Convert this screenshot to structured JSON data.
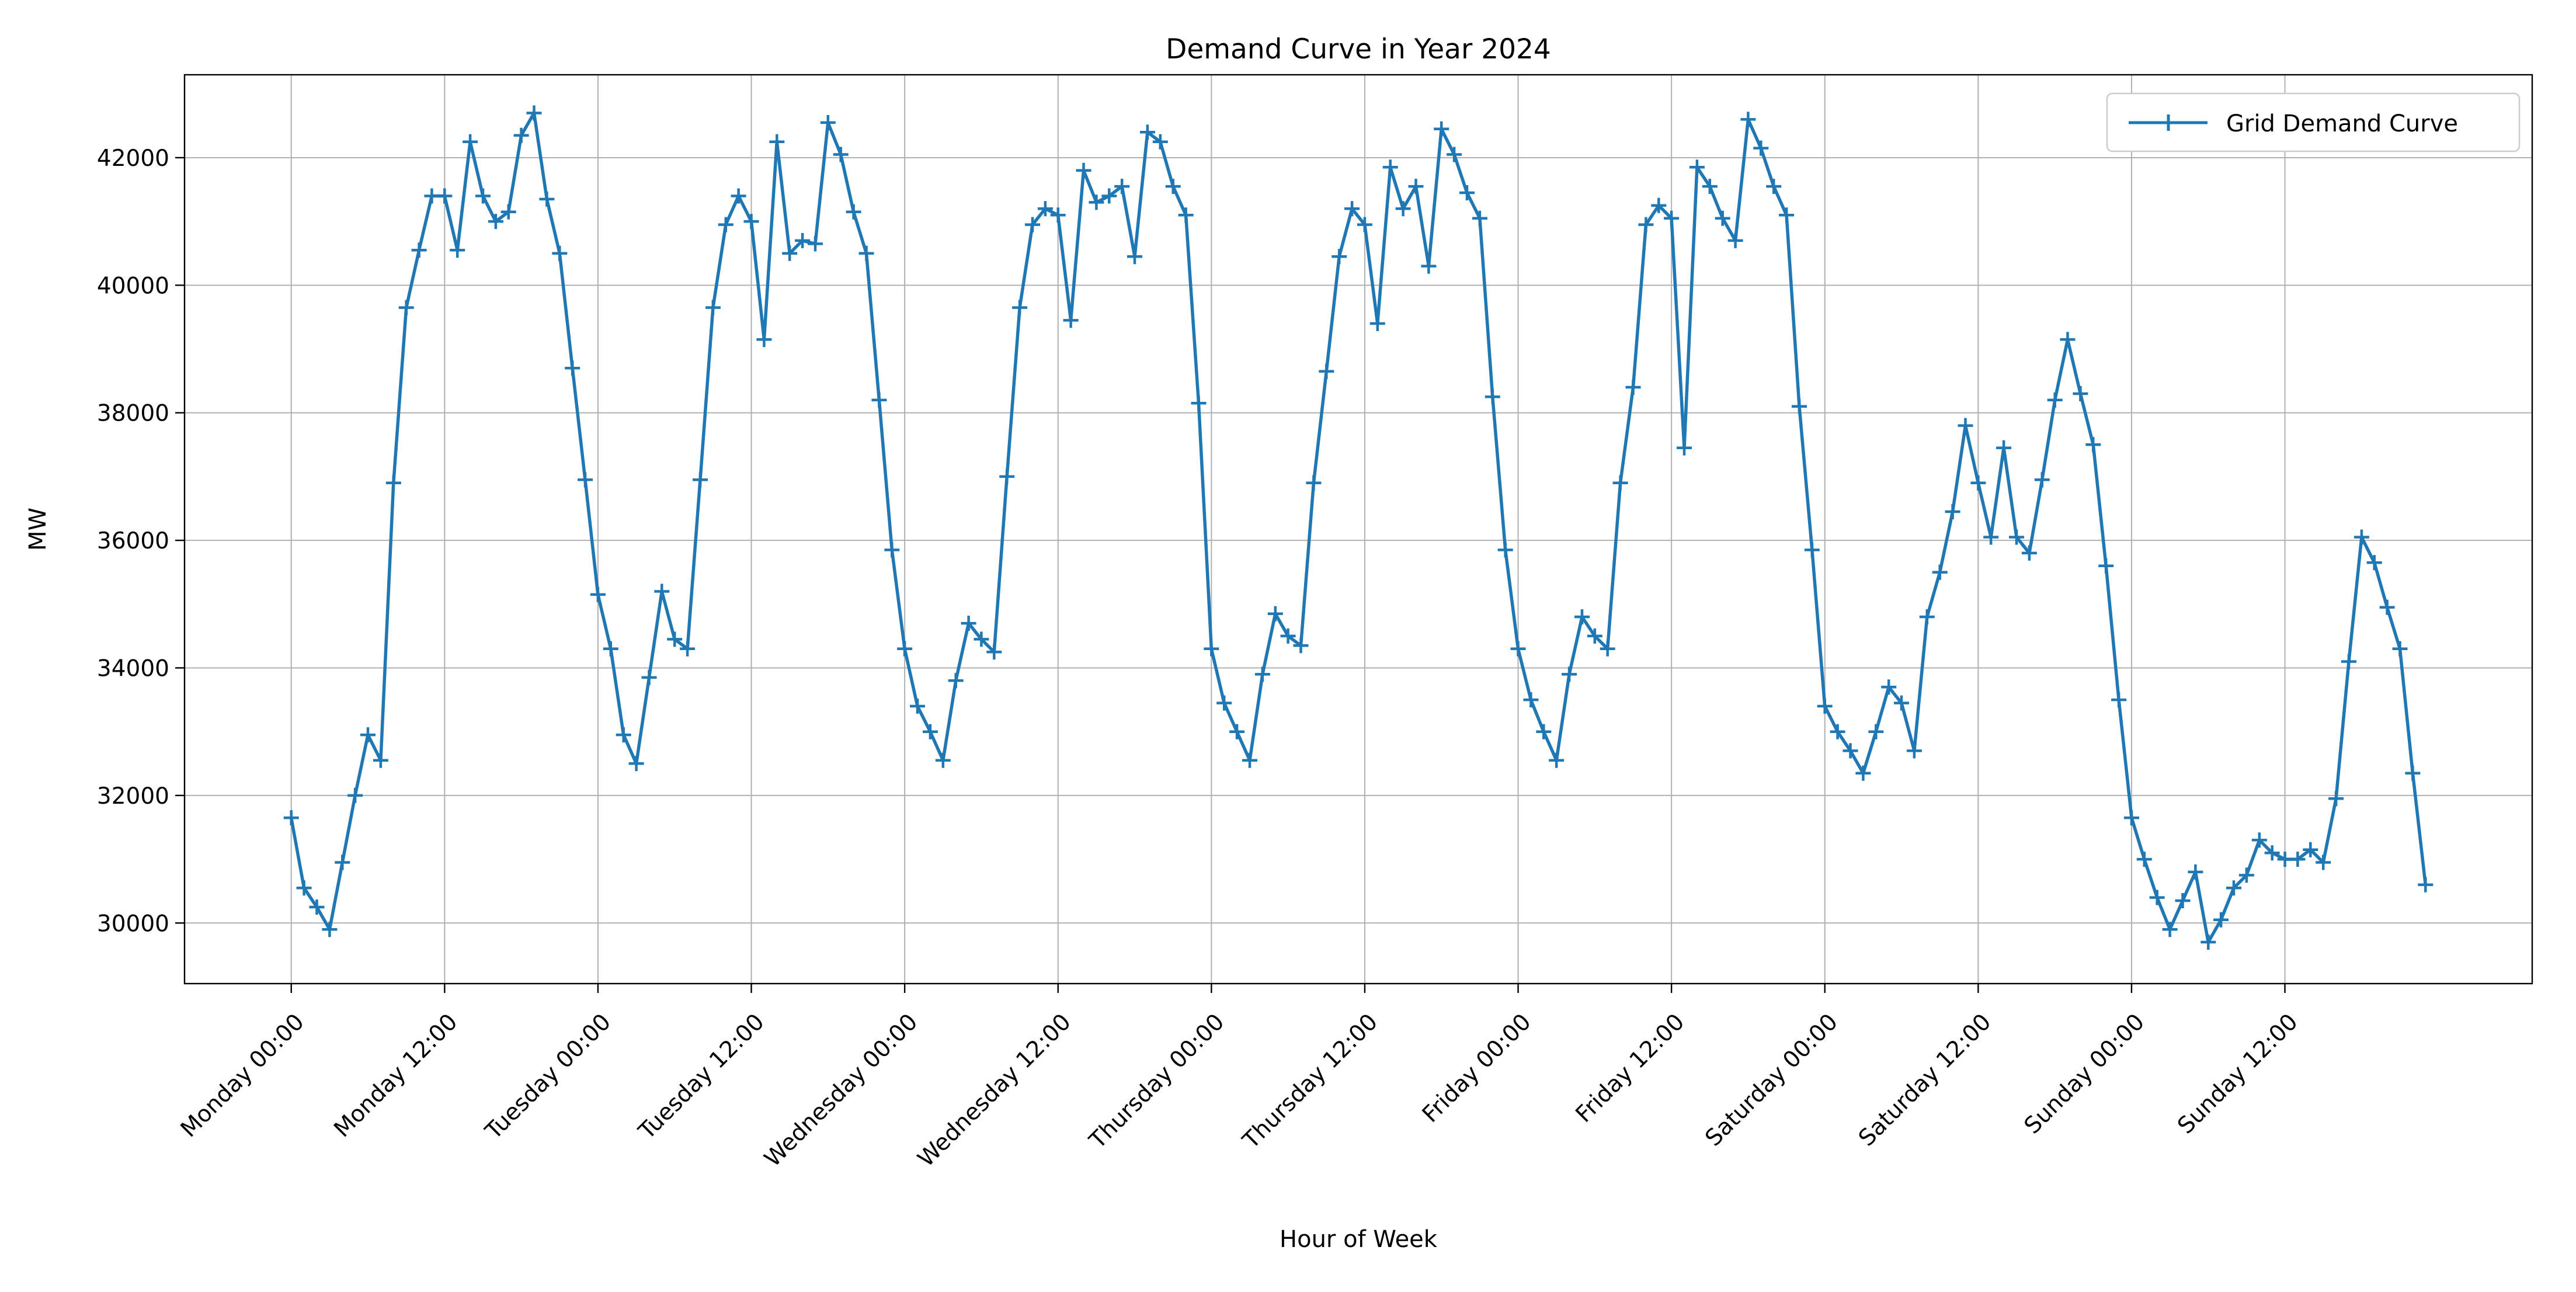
{
  "figure": {
    "title": "Demand Curve in Year 2024"
  },
  "chart_data": {
    "type": "line",
    "title": "Demand Curve in Year 2024",
    "xlabel": "Hour of Week",
    "ylabel": "MW",
    "legend": {
      "label": "Grid Demand Curve",
      "position": "upper right"
    },
    "grid": true,
    "grid_color": "#b0b0b0",
    "axis_color": "#000000",
    "background": "#ffffff",
    "series": [
      {
        "name": "Grid Demand Curve",
        "color": "#1f77b4",
        "marker": "plus",
        "x_start_hour": 0,
        "values": [
          31650,
          30550,
          30250,
          29900,
          30950,
          32000,
          32950,
          32550,
          36900,
          39650,
          40550,
          41400,
          41400,
          40550,
          42250,
          41400,
          41000,
          41150,
          42350,
          42700,
          41350,
          40500,
          38700,
          36950,
          35150,
          34300,
          32950,
          32500,
          33850,
          35200,
          34450,
          34300,
          36950,
          39650,
          40950,
          41400,
          41000,
          39150,
          42250,
          40500,
          40700,
          40650,
          42550,
          42050,
          41150,
          40500,
          38200,
          35850,
          34300,
          33400,
          33000,
          32550,
          33800,
          34700,
          34450,
          34250,
          37000,
          39650,
          40950,
          41200,
          41100,
          39450,
          41800,
          41300,
          41400,
          41550,
          40450,
          42400,
          42250,
          41550,
          41100,
          38150,
          34300,
          33450,
          33000,
          32550,
          33900,
          34850,
          34500,
          34350,
          36900,
          38650,
          40450,
          41200,
          40950,
          39400,
          41850,
          41200,
          41550,
          40300,
          42450,
          42050,
          41450,
          41050,
          38250,
          35850,
          34300,
          33500,
          33000,
          32550,
          33900,
          34800,
          34500,
          34300,
          36900,
          38400,
          40950,
          41250,
          41050,
          37450,
          41850,
          41550,
          41050,
          40700,
          42600,
          42150,
          41550,
          41100,
          38100,
          35850,
          33400,
          33000,
          32700,
          32350,
          33000,
          33700,
          33450,
          32700,
          34800,
          35500,
          36450,
          37800,
          36900,
          36050,
          37450,
          36050,
          35800,
          36950,
          38200,
          39150,
          38300,
          37500,
          35600,
          33500,
          31650,
          31000,
          30400,
          29900,
          30350,
          30800,
          29700,
          30050,
          30550,
          30750,
          31300,
          31100,
          31000,
          31000,
          31150,
          30950,
          31950,
          34100,
          36050,
          35650,
          34950,
          34300,
          32350,
          30600
        ]
      }
    ],
    "x_tick_positions": [
      0,
      12,
      24,
      36,
      48,
      60,
      72,
      84,
      96,
      108,
      120,
      132,
      144,
      156
    ],
    "x_tick_labels": [
      "Monday 00:00",
      "Monday 12:00",
      "Tuesday 00:00",
      "Tuesday 12:00",
      "Wednesday 00:00",
      "Wednesday 12:00",
      "Thursday 00:00",
      "Thursday 12:00",
      "Friday 00:00",
      "Friday 12:00",
      "Saturday 00:00",
      "Saturday 12:00",
      "Sunday 00:00",
      "Sunday 12:00"
    ],
    "y_ticks": [
      30000,
      32000,
      34000,
      36000,
      38000,
      40000,
      42000
    ],
    "xlim": [
      -8.35,
      175.35
    ],
    "ylim": [
      29050,
      43300
    ]
  }
}
